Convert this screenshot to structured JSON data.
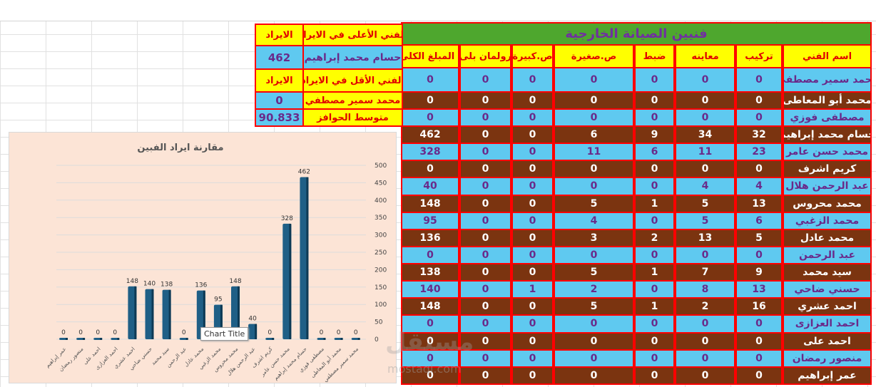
{
  "title": "فنيين الصيانة الخارجية",
  "headers": [
    "اسم الفني",
    "تركيب",
    "معاينه",
    "ضبط",
    "ص.صغيرة",
    "ص.كبيرة",
    "رولمان بلى",
    "ا المبلغ الكلى"
  ],
  "rows": [
    [
      "محمد سمير مصطفي",
      0,
      0,
      0,
      0,
      0,
      0,
      0
    ],
    [
      "محمد أبو المعاطى",
      0,
      0,
      0,
      0,
      0,
      0,
      0
    ],
    [
      "مصطفى فوزي",
      0,
      0,
      0,
      0,
      0,
      0,
      0
    ],
    [
      "حسام محمد إبراهيم",
      32,
      34,
      9,
      6,
      0,
      0,
      462
    ],
    [
      "محمد حسن عامر",
      23,
      11,
      6,
      11,
      0,
      0,
      328
    ],
    [
      "كريم اشرف",
      0,
      0,
      0,
      0,
      0,
      0,
      0
    ],
    [
      "عبد الرحمن هلال",
      4,
      4,
      0,
      0,
      0,
      0,
      40
    ],
    [
      "محمد محروس",
      13,
      5,
      1,
      5,
      0,
      0,
      148
    ],
    [
      "محمد الزغبي",
      6,
      5,
      0,
      4,
      0,
      0,
      95
    ],
    [
      "محمد عادل",
      5,
      13,
      2,
      3,
      0,
      0,
      136
    ],
    [
      "عبد الرحمن",
      0,
      0,
      0,
      0,
      0,
      0,
      0
    ],
    [
      "سيد محمد",
      9,
      7,
      1,
      5,
      0,
      0,
      138
    ],
    [
      "حسني ضاحي",
      13,
      8,
      0,
      2,
      1,
      0,
      140
    ],
    [
      "احمد عشري",
      16,
      2,
      1,
      5,
      0,
      0,
      148
    ],
    [
      "احمد العزازى",
      0,
      0,
      0,
      0,
      0,
      0,
      0
    ],
    [
      "احمد على",
      0,
      0,
      0,
      0,
      0,
      0,
      0
    ],
    [
      "منصور رمضان",
      0,
      0,
      0,
      0,
      0,
      0,
      0
    ],
    [
      "عمر إبراهيم",
      0,
      0,
      0,
      0,
      0,
      0,
      0
    ]
  ],
  "summary": {
    "highest_label": "الفني الأعلى في الايراد",
    "highest_rev_label": "الايراد",
    "highest_name": "حسام محمد إبراهيم",
    "highest_value": "462",
    "lowest_label": "الفني الأقل في الايراد",
    "lowest_rev_label": "الايراد",
    "lowest_name": "محمد سمير مصطفي",
    "lowest_value": "0",
    "avg_label": "متوسط الحوافز",
    "avg_value": "90.833"
  },
  "colors": {
    "title_bg": "#4ea72e",
    "header_bg": "#ffff00",
    "row_blue": "#5fc9f0",
    "row_brown": "#7b3410",
    "border": "#ff0000",
    "bar": "#1f5f86"
  },
  "chart_data": {
    "type": "bar",
    "title": "مقارنة ايراد الفبين",
    "categories": [
      "عمر إبراهيم",
      "منصور رمضان",
      "احمد على",
      "احمد العزازى",
      "احمد عشري",
      "حسني ضاحي",
      "سيد محمد",
      "عبد الرحمن",
      "محمد عادل",
      "محمد الزغبي",
      "محمد محروس",
      "عبد الرحمن هلال",
      "كريم اشرف",
      "محمد حسن عامر",
      "حسام محمد إبراهيم",
      "مصطفى فوزي",
      "محمد أبو المعاطى",
      "محمد سمير مصطفي"
    ],
    "values": [
      0,
      0,
      0,
      0,
      148,
      140,
      138,
      0,
      136,
      95,
      148,
      40,
      0,
      328,
      462,
      0,
      0,
      0
    ],
    "ylim": [
      0,
      500
    ],
    "yticks": [
      0,
      50,
      100,
      150,
      200,
      250,
      300,
      350,
      400,
      450,
      500
    ],
    "axis_position": "right",
    "grid": true,
    "style": "3d-column"
  },
  "tooltip": "Chart Title",
  "watermark": "مستقل",
  "watermark_url": "mostaql.com"
}
